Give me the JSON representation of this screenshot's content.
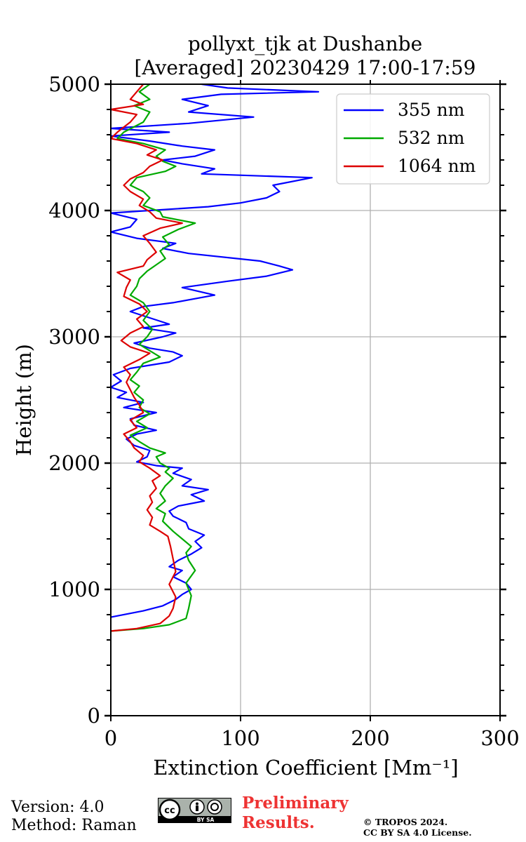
{
  "chart_data": {
    "type": "line",
    "orientation": "vertical-profile",
    "title": "pollyxt_tjk at Dushanbe",
    "subtitle": "[Averaged] 20230429 17:00-17:59",
    "xlabel": "Extinction Coefficient [Mm⁻¹]",
    "ylabel": "Height (m)",
    "xlim": [
      0,
      300
    ],
    "ylim": [
      0,
      5000
    ],
    "xticks": [
      0,
      100,
      200,
      300
    ],
    "yticks": [
      0,
      1000,
      2000,
      3000,
      4000,
      5000
    ],
    "xtick_labels": [
      "0",
      "100",
      "200",
      "300"
    ],
    "ytick_labels": [
      "0",
      "1000",
      "2000",
      "3000",
      "4000",
      "5000"
    ],
    "grid": true,
    "legend_position": "top-right",
    "series": [
      {
        "name": "355 nm",
        "color": "#0000ff",
        "points": [
          [
            0,
            780
          ],
          [
            25,
            830
          ],
          [
            40,
            870
          ],
          [
            50,
            920
          ],
          [
            55,
            960
          ],
          [
            62,
            1000
          ],
          [
            58,
            1050
          ],
          [
            48,
            1100
          ],
          [
            55,
            1150
          ],
          [
            45,
            1180
          ],
          [
            52,
            1230
          ],
          [
            62,
            1280
          ],
          [
            70,
            1330
          ],
          [
            65,
            1380
          ],
          [
            72,
            1430
          ],
          [
            60,
            1480
          ],
          [
            58,
            1530
          ],
          [
            48,
            1580
          ],
          [
            45,
            1620
          ],
          [
            52,
            1660
          ],
          [
            72,
            1700
          ],
          [
            62,
            1750
          ],
          [
            75,
            1790
          ],
          [
            55,
            1820
          ],
          [
            62,
            1870
          ],
          [
            48,
            1920
          ],
          [
            55,
            1960
          ],
          [
            35,
            1980
          ],
          [
            20,
            2010
          ],
          [
            28,
            2050
          ],
          [
            30,
            2100
          ],
          [
            18,
            2140
          ],
          [
            12,
            2190
          ],
          [
            20,
            2230
          ],
          [
            35,
            2260
          ],
          [
            18,
            2300
          ],
          [
            15,
            2350
          ],
          [
            35,
            2400
          ],
          [
            10,
            2440
          ],
          [
            25,
            2480
          ],
          [
            5,
            2520
          ],
          [
            12,
            2560
          ],
          [
            0,
            2600
          ],
          [
            8,
            2650
          ],
          [
            2,
            2700
          ],
          [
            15,
            2750
          ],
          [
            45,
            2800
          ],
          [
            55,
            2850
          ],
          [
            48,
            2880
          ],
          [
            30,
            2910
          ],
          [
            18,
            2950
          ],
          [
            40,
            3000
          ],
          [
            50,
            3030
          ],
          [
            25,
            3070
          ],
          [
            45,
            3100
          ],
          [
            30,
            3150
          ],
          [
            15,
            3200
          ],
          [
            25,
            3240
          ],
          [
            48,
            3270
          ],
          [
            80,
            3330
          ],
          [
            55,
            3390
          ],
          [
            90,
            3440
          ],
          [
            120,
            3480
          ],
          [
            140,
            3530
          ],
          [
            130,
            3560
          ],
          [
            115,
            3600
          ],
          [
            60,
            3660
          ],
          [
            40,
            3700
          ],
          [
            50,
            3740
          ],
          [
            20,
            3780
          ],
          [
            0,
            3830
          ],
          [
            15,
            3870
          ],
          [
            20,
            3930
          ],
          [
            0,
            3980
          ],
          [
            45,
            4010
          ],
          [
            75,
            4030
          ],
          [
            100,
            4060
          ],
          [
            120,
            4100
          ],
          [
            130,
            4150
          ],
          [
            125,
            4200
          ],
          [
            155,
            4260
          ],
          [
            70,
            4290
          ],
          [
            80,
            4330
          ],
          [
            55,
            4370
          ],
          [
            40,
            4400
          ],
          [
            65,
            4430
          ],
          [
            80,
            4480
          ],
          [
            55,
            4510
          ],
          [
            30,
            4550
          ],
          [
            0,
            4590
          ],
          [
            45,
            4620
          ],
          [
            0,
            4650
          ],
          [
            60,
            4690
          ],
          [
            110,
            4740
          ],
          [
            60,
            4780
          ],
          [
            75,
            4830
          ],
          [
            55,
            4880
          ],
          [
            85,
            4920
          ],
          [
            160,
            4940
          ],
          [
            90,
            4970
          ],
          [
            70,
            5000
          ]
        ]
      },
      {
        "name": "532 nm",
        "color": "#00aa00",
        "points": [
          [
            0,
            670
          ],
          [
            25,
            690
          ],
          [
            45,
            720
          ],
          [
            58,
            770
          ],
          [
            60,
            850
          ],
          [
            62,
            950
          ],
          [
            58,
            1050
          ],
          [
            65,
            1150
          ],
          [
            60,
            1230
          ],
          [
            58,
            1290
          ],
          [
            62,
            1340
          ],
          [
            55,
            1400
          ],
          [
            48,
            1460
          ],
          [
            40,
            1540
          ],
          [
            42,
            1600
          ],
          [
            35,
            1640
          ],
          [
            42,
            1700
          ],
          [
            38,
            1760
          ],
          [
            42,
            1820
          ],
          [
            48,
            1880
          ],
          [
            42,
            1930
          ],
          [
            45,
            1960
          ],
          [
            38,
            2000
          ],
          [
            35,
            2050
          ],
          [
            42,
            2080
          ],
          [
            30,
            2120
          ],
          [
            22,
            2170
          ],
          [
            15,
            2220
          ],
          [
            28,
            2280
          ],
          [
            20,
            2330
          ],
          [
            30,
            2390
          ],
          [
            22,
            2440
          ],
          [
            25,
            2500
          ],
          [
            18,
            2560
          ],
          [
            22,
            2610
          ],
          [
            15,
            2660
          ],
          [
            20,
            2720
          ],
          [
            25,
            2790
          ],
          [
            38,
            2840
          ],
          [
            30,
            2890
          ],
          [
            22,
            2940
          ],
          [
            28,
            3000
          ],
          [
            32,
            3060
          ],
          [
            25,
            3130
          ],
          [
            30,
            3200
          ],
          [
            25,
            3270
          ],
          [
            15,
            3330
          ],
          [
            20,
            3400
          ],
          [
            22,
            3460
          ],
          [
            28,
            3520
          ],
          [
            35,
            3570
          ],
          [
            42,
            3620
          ],
          [
            38,
            3680
          ],
          [
            45,
            3730
          ],
          [
            40,
            3790
          ],
          [
            52,
            3850
          ],
          [
            65,
            3900
          ],
          [
            40,
            3950
          ],
          [
            38,
            3990
          ],
          [
            25,
            4040
          ],
          [
            30,
            4100
          ],
          [
            25,
            4150
          ],
          [
            15,
            4200
          ],
          [
            20,
            4260
          ],
          [
            42,
            4310
          ],
          [
            50,
            4350
          ],
          [
            40,
            4390
          ],
          [
            35,
            4430
          ],
          [
            42,
            4480
          ],
          [
            25,
            4530
          ],
          [
            5,
            4570
          ],
          [
            10,
            4620
          ],
          [
            25,
            4700
          ],
          [
            30,
            4780
          ],
          [
            18,
            4830
          ],
          [
            30,
            4880
          ],
          [
            22,
            4940
          ],
          [
            30,
            5000
          ]
        ]
      },
      {
        "name": "1064 nm",
        "color": "#dd0000",
        "points": [
          [
            0,
            670
          ],
          [
            20,
            690
          ],
          [
            38,
            730
          ],
          [
            45,
            790
          ],
          [
            48,
            850
          ],
          [
            50,
            940
          ],
          [
            45,
            1040
          ],
          [
            50,
            1140
          ],
          [
            48,
            1240
          ],
          [
            46,
            1340
          ],
          [
            44,
            1420
          ],
          [
            38,
            1460
          ],
          [
            30,
            1510
          ],
          [
            32,
            1570
          ],
          [
            28,
            1630
          ],
          [
            32,
            1690
          ],
          [
            30,
            1740
          ],
          [
            35,
            1800
          ],
          [
            32,
            1860
          ],
          [
            38,
            1900
          ],
          [
            30,
            1960
          ],
          [
            22,
            2010
          ],
          [
            25,
            2060
          ],
          [
            18,
            2120
          ],
          [
            15,
            2170
          ],
          [
            10,
            2230
          ],
          [
            20,
            2280
          ],
          [
            15,
            2340
          ],
          [
            25,
            2400
          ],
          [
            22,
            2460
          ],
          [
            18,
            2520
          ],
          [
            15,
            2580
          ],
          [
            12,
            2640
          ],
          [
            15,
            2700
          ],
          [
            10,
            2760
          ],
          [
            22,
            2820
          ],
          [
            30,
            2870
          ],
          [
            15,
            2920
          ],
          [
            8,
            2970
          ],
          [
            15,
            3030
          ],
          [
            25,
            3080
          ],
          [
            20,
            3140
          ],
          [
            28,
            3200
          ],
          [
            22,
            3260
          ],
          [
            10,
            3320
          ],
          [
            12,
            3390
          ],
          [
            15,
            3450
          ],
          [
            5,
            3510
          ],
          [
            25,
            3560
          ],
          [
            28,
            3610
          ],
          [
            35,
            3670
          ],
          [
            30,
            3740
          ],
          [
            25,
            3800
          ],
          [
            38,
            3860
          ],
          [
            55,
            3900
          ],
          [
            35,
            3940
          ],
          [
            30,
            3990
          ],
          [
            22,
            4040
          ],
          [
            25,
            4090
          ],
          [
            15,
            4150
          ],
          [
            10,
            4200
          ],
          [
            15,
            4250
          ],
          [
            25,
            4300
          ],
          [
            30,
            4350
          ],
          [
            40,
            4400
          ],
          [
            28,
            4440
          ],
          [
            35,
            4480
          ],
          [
            20,
            4530
          ],
          [
            0,
            4570
          ],
          [
            5,
            4620
          ],
          [
            15,
            4700
          ],
          [
            20,
            4760
          ],
          [
            0,
            4800
          ],
          [
            25,
            4840
          ],
          [
            15,
            4880
          ],
          [
            20,
            4940
          ],
          [
            25,
            5000
          ]
        ]
      }
    ]
  },
  "footer": {
    "version": "Version: 4.0",
    "method": "Method: Raman",
    "preliminary_line1": "Preliminary",
    "preliminary_line2": "Results.",
    "copyright_line1": "© TROPOS 2024.",
    "copyright_line2": "CC BY SA 4.0 License.",
    "cc_badge_text": "BY  SA",
    "cc_icon": "cc-by-sa-icon",
    "preliminary_color": "#ee3333"
  }
}
